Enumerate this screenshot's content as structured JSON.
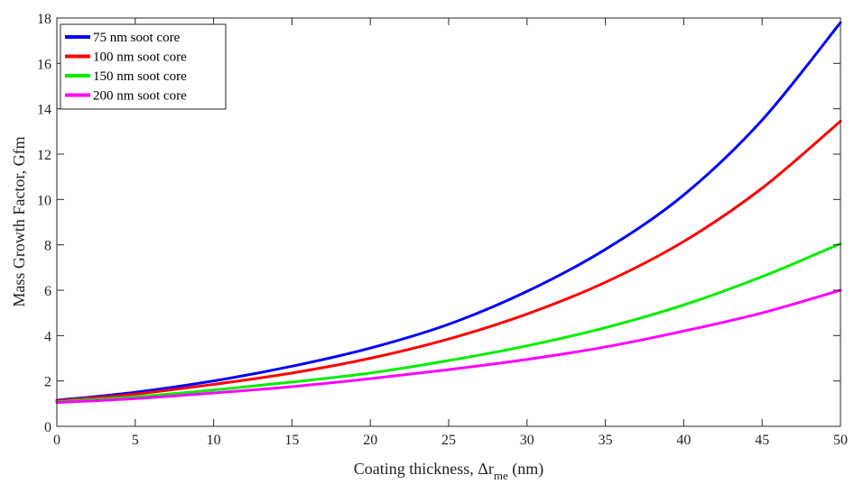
{
  "chart_data": {
    "type": "line",
    "xlabel": {
      "prefix": "Coating thickness, ",
      "symbol": "Δr",
      "subscript": "me",
      "suffix": " (nm)"
    },
    "ylabel": "Mass Growth Factor, Gfm",
    "xlim": [
      0,
      50
    ],
    "ylim": [
      0,
      18
    ],
    "xticks": [
      0,
      5,
      10,
      15,
      20,
      25,
      30,
      35,
      40,
      45,
      50
    ],
    "yticks": [
      0,
      2,
      4,
      6,
      8,
      10,
      12,
      14,
      16,
      18
    ],
    "grid": false,
    "legend_position": "top-left",
    "series": [
      {
        "name": "75 nm soot core",
        "color": "#0000ff",
        "x": [
          0,
          5,
          10,
          15,
          20,
          25,
          30,
          35,
          40,
          45,
          50
        ],
        "y": [
          1.15,
          1.5,
          2.0,
          2.65,
          3.45,
          4.5,
          5.95,
          7.8,
          10.2,
          13.5,
          17.8
        ]
      },
      {
        "name": "100 nm soot core",
        "color": "#ff0000",
        "x": [
          0,
          5,
          10,
          15,
          20,
          25,
          30,
          35,
          40,
          45,
          50
        ],
        "y": [
          1.12,
          1.42,
          1.85,
          2.35,
          3.0,
          3.85,
          4.95,
          6.35,
          8.15,
          10.5,
          13.45
        ]
      },
      {
        "name": "150 nm soot core",
        "color": "#00ee00",
        "x": [
          0,
          5,
          10,
          15,
          20,
          25,
          30,
          35,
          40,
          45,
          50
        ],
        "y": [
          1.08,
          1.3,
          1.6,
          1.95,
          2.35,
          2.9,
          3.55,
          4.35,
          5.35,
          6.6,
          8.05
        ]
      },
      {
        "name": "200 nm soot core",
        "color": "#ff00ff",
        "x": [
          0,
          5,
          10,
          15,
          20,
          25,
          30,
          35,
          40,
          45,
          50
        ],
        "y": [
          1.05,
          1.22,
          1.47,
          1.75,
          2.1,
          2.5,
          2.95,
          3.5,
          4.2,
          5.0,
          6.0
        ]
      }
    ]
  }
}
